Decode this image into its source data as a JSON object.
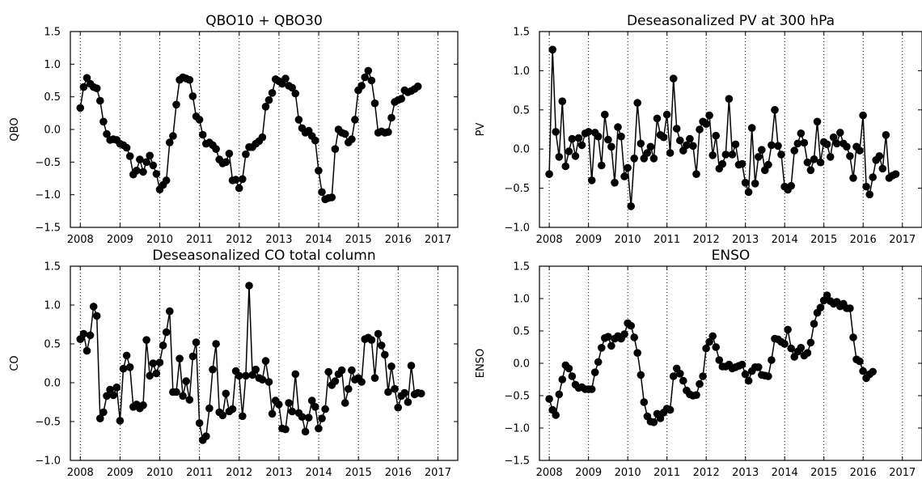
{
  "chart_data": [
    {
      "type": "line",
      "title": "QBO10 + QBO30",
      "xlabel": "",
      "ylabel": "QBO",
      "xlim": [
        2007.75,
        2017.5
      ],
      "ylim": [
        -1.5,
        1.5
      ],
      "xticks": [
        2008,
        2009,
        2010,
        2011,
        2012,
        2013,
        2014,
        2015,
        2016,
        2017
      ],
      "xtick_labels": [
        "2008",
        "2009",
        "2010",
        "2011",
        "2012",
        "2013",
        "2014",
        "2015",
        "2016",
        "2017"
      ],
      "yticks": [
        -1.5,
        -1.0,
        -0.5,
        0.0,
        0.5,
        1.0,
        1.5
      ],
      "ytick_labels": [
        "−1.5",
        "−1.0",
        "−0.5",
        "0.0",
        "0.5",
        "1.0",
        "1.5"
      ],
      "grid": "vertical dotted",
      "marker": "filled circle",
      "color": "#000000",
      "x_start": 2008.0,
      "x_step": 0.0833,
      "y": [
        0.33,
        0.65,
        0.79,
        0.7,
        0.65,
        0.63,
        0.44,
        0.12,
        -0.07,
        -0.16,
        -0.15,
        -0.16,
        -0.22,
        -0.24,
        -0.28,
        -0.41,
        -0.69,
        -0.63,
        -0.46,
        -0.65,
        -0.5,
        -0.4,
        -0.55,
        -0.68,
        -0.92,
        -0.85,
        -0.78,
        -0.2,
        -0.1,
        0.38,
        0.76,
        0.8,
        0.78,
        0.76,
        0.51,
        0.2,
        0.15,
        -0.08,
        -0.22,
        -0.2,
        -0.24,
        -0.3,
        -0.46,
        -0.52,
        -0.5,
        -0.37,
        -0.78,
        -0.77,
        -0.9,
        -0.76,
        -0.38,
        -0.27,
        -0.27,
        -0.22,
        -0.18,
        -0.12,
        0.35,
        0.45,
        0.56,
        0.77,
        0.74,
        0.7,
        0.78,
        0.67,
        0.64,
        0.55,
        0.15,
        0.02,
        -0.05,
        -0.02,
        -0.1,
        -0.17,
        -0.63,
        -0.96,
        -1.07,
        -1.05,
        -1.04,
        -0.3,
        0.0,
        -0.05,
        -0.07,
        -0.2,
        -0.15,
        0.15,
        0.6,
        0.67,
        0.8,
        0.9,
        0.75,
        0.4,
        -0.05,
        -0.03,
        -0.05,
        -0.04,
        0.18,
        0.42,
        0.45,
        0.47,
        0.6,
        0.57,
        0.59,
        0.62,
        0.66
      ]
    },
    {
      "type": "line",
      "title": "Deseasonalized PV at 300 hPa",
      "xlabel": "",
      "ylabel": "PV",
      "xlim": [
        2007.75,
        2017.5
      ],
      "ylim": [
        -1.0,
        1.5
      ],
      "xticks": [
        2008,
        2009,
        2010,
        2011,
        2012,
        2013,
        2014,
        2015,
        2016,
        2017
      ],
      "xtick_labels": [
        "2008",
        "2009",
        "2010",
        "2011",
        "2012",
        "2013",
        "2014",
        "2015",
        "2016",
        "2017"
      ],
      "yticks": [
        -1.0,
        -0.5,
        0.0,
        0.5,
        1.0,
        1.5
      ],
      "ytick_labels": [
        "−1.0",
        "−0.5",
        "0.0",
        "0.5",
        "1.0",
        "1.5"
      ],
      "grid": "vertical dotted",
      "marker": "filled circle",
      "color": "#000000",
      "x_start": 2008.0,
      "x_step": 0.0833,
      "y": [
        -0.32,
        1.27,
        0.22,
        -0.1,
        0.61,
        -0.22,
        -0.03,
        0.13,
        -0.09,
        0.14,
        0.05,
        0.2,
        0.22,
        -0.4,
        0.21,
        0.16,
        -0.21,
        0.44,
        0.12,
        0.03,
        -0.43,
        0.28,
        0.16,
        -0.35,
        -0.24,
        -0.73,
        -0.12,
        0.59,
        0.07,
        -0.12,
        -0.05,
        0.03,
        -0.12,
        0.39,
        0.18,
        0.15,
        0.44,
        -0.05,
        0.9,
        0.26,
        0.11,
        -0.02,
        0.05,
        0.13,
        0.04,
        -0.32,
        0.25,
        0.35,
        0.32,
        0.43,
        -0.08,
        0.17,
        -0.25,
        -0.19,
        -0.07,
        0.64,
        -0.07,
        0.06,
        -0.2,
        -0.19,
        -0.43,
        -0.55,
        0.27,
        -0.44,
        -0.1,
        -0.01,
        -0.27,
        -0.2,
        0.05,
        0.5,
        0.04,
        -0.07,
        -0.48,
        -0.52,
        -0.47,
        -0.02,
        0.07,
        0.2,
        0.08,
        -0.17,
        -0.27,
        -0.13,
        0.35,
        -0.17,
        0.09,
        0.06,
        -0.1,
        0.15,
        0.07,
        0.21,
        0.07,
        0.03,
        -0.09,
        -0.37,
        0.03,
        -0.02,
        0.43,
        -0.48,
        -0.58,
        -0.36,
        -0.14,
        -0.09,
        -0.25,
        0.18,
        -0.37,
        -0.34,
        -0.32
      ]
    },
    {
      "type": "line",
      "title": "Deseasonalized CO total column",
      "xlabel": "",
      "ylabel": "CO",
      "xlim": [
        2007.75,
        2017.5
      ],
      "ylim": [
        -1.0,
        1.5
      ],
      "xticks": [
        2008,
        2009,
        2010,
        2011,
        2012,
        2013,
        2014,
        2015,
        2016,
        2017
      ],
      "xtick_labels": [
        "2008",
        "2009",
        "2010",
        "2011",
        "2012",
        "2013",
        "2014",
        "2015",
        "2016",
        "2017"
      ],
      "yticks": [
        -1.0,
        -0.5,
        0.0,
        0.5,
        1.0,
        1.5
      ],
      "ytick_labels": [
        "−1.0",
        "−0.5",
        "0.0",
        "0.5",
        "1.0",
        "1.5"
      ],
      "grid": "vertical dotted",
      "marker": "filled circle",
      "color": "#000000",
      "x_start": 2008.0,
      "x_step": 0.0833,
      "y": [
        0.56,
        0.63,
        0.41,
        0.61,
        0.98,
        0.86,
        -0.46,
        -0.38,
        -0.17,
        -0.09,
        -0.16,
        -0.06,
        -0.49,
        0.18,
        0.35,
        0.2,
        -0.31,
        -0.28,
        -0.33,
        -0.29,
        0.55,
        0.09,
        0.25,
        0.12,
        0.26,
        0.48,
        0.65,
        0.92,
        -0.12,
        -0.12,
        0.31,
        -0.17,
        0.02,
        -0.22,
        0.34,
        0.52,
        -0.52,
        -0.74,
        -0.69,
        -0.33,
        0.17,
        0.5,
        -0.38,
        -0.42,
        -0.14,
        -0.37,
        -0.34,
        0.15,
        0.09,
        -0.43,
        0.09,
        1.25,
        0.1,
        0.17,
        0.06,
        0.04,
        0.28,
        0.01,
        -0.4,
        -0.23,
        -0.28,
        -0.59,
        -0.6,
        -0.26,
        -0.37,
        0.11,
        -0.39,
        -0.44,
        -0.63,
        -0.45,
        -0.23,
        -0.31,
        -0.59,
        -0.46,
        -0.34,
        0.14,
        -0.03,
        0.02,
        0.11,
        0.16,
        -0.26,
        -0.08,
        0.16,
        0.04,
        0.06,
        0.01,
        0.56,
        0.58,
        0.55,
        0.06,
        0.63,
        0.48,
        0.36,
        -0.12,
        0.21,
        -0.08,
        -0.32,
        -0.17,
        -0.13,
        -0.25,
        0.22,
        -0.15,
        -0.13,
        -0.14
      ]
    },
    {
      "type": "line",
      "title": "ENSO",
      "xlabel": "",
      "ylabel": "ENSO",
      "xlim": [
        2007.75,
        2017.5
      ],
      "ylim": [
        -1.5,
        1.5
      ],
      "xticks": [
        2008,
        2009,
        2010,
        2011,
        2012,
        2013,
        2014,
        2015,
        2016,
        2017
      ],
      "xtick_labels": [
        "2008",
        "2009",
        "2010",
        "2011",
        "2012",
        "2013",
        "2014",
        "2015",
        "2016",
        "2017"
      ],
      "yticks": [
        -1.5,
        -1.0,
        -0.5,
        0.0,
        0.5,
        1.0,
        1.5
      ],
      "ytick_labels": [
        "−1.5",
        "−1.0",
        "−0.5",
        "0.0",
        "0.5",
        "1.0",
        "1.5"
      ],
      "grid": "vertical dotted",
      "marker": "filled circle",
      "color": "#000000",
      "x_start": 2008.0,
      "x_step": 0.0833,
      "y": [
        -0.55,
        -0.72,
        -0.8,
        -0.48,
        -0.25,
        -0.03,
        -0.08,
        -0.2,
        -0.33,
        -0.38,
        -0.37,
        -0.4,
        -0.4,
        -0.4,
        -0.14,
        0.02,
        0.24,
        0.39,
        0.41,
        0.27,
        0.38,
        0.42,
        0.38,
        0.45,
        0.62,
        0.58,
        0.4,
        0.16,
        -0.18,
        -0.6,
        -0.82,
        -0.9,
        -0.91,
        -0.78,
        -0.85,
        -0.76,
        -0.7,
        -0.72,
        -0.2,
        -0.08,
        -0.16,
        -0.27,
        -0.42,
        -0.48,
        -0.5,
        -0.49,
        -0.32,
        -0.2,
        0.23,
        0.33,
        0.42,
        0.25,
        0.05,
        -0.05,
        -0.05,
        -0.02,
        -0.08,
        -0.06,
        -0.04,
        -0.02,
        -0.17,
        -0.27,
        -0.12,
        -0.06,
        -0.06,
        -0.18,
        -0.19,
        -0.2,
        0.05,
        0.38,
        0.37,
        0.33,
        0.3,
        0.52,
        0.23,
        0.1,
        0.18,
        0.24,
        0.12,
        0.16,
        0.32,
        0.61,
        0.78,
        0.86,
        0.97,
        1.05,
        0.96,
        0.92,
        0.95,
        0.88,
        0.92,
        0.85,
        0.85,
        0.4,
        0.06,
        0.03,
        -0.12,
        -0.23,
        -0.17,
        -0.13
      ]
    }
  ]
}
